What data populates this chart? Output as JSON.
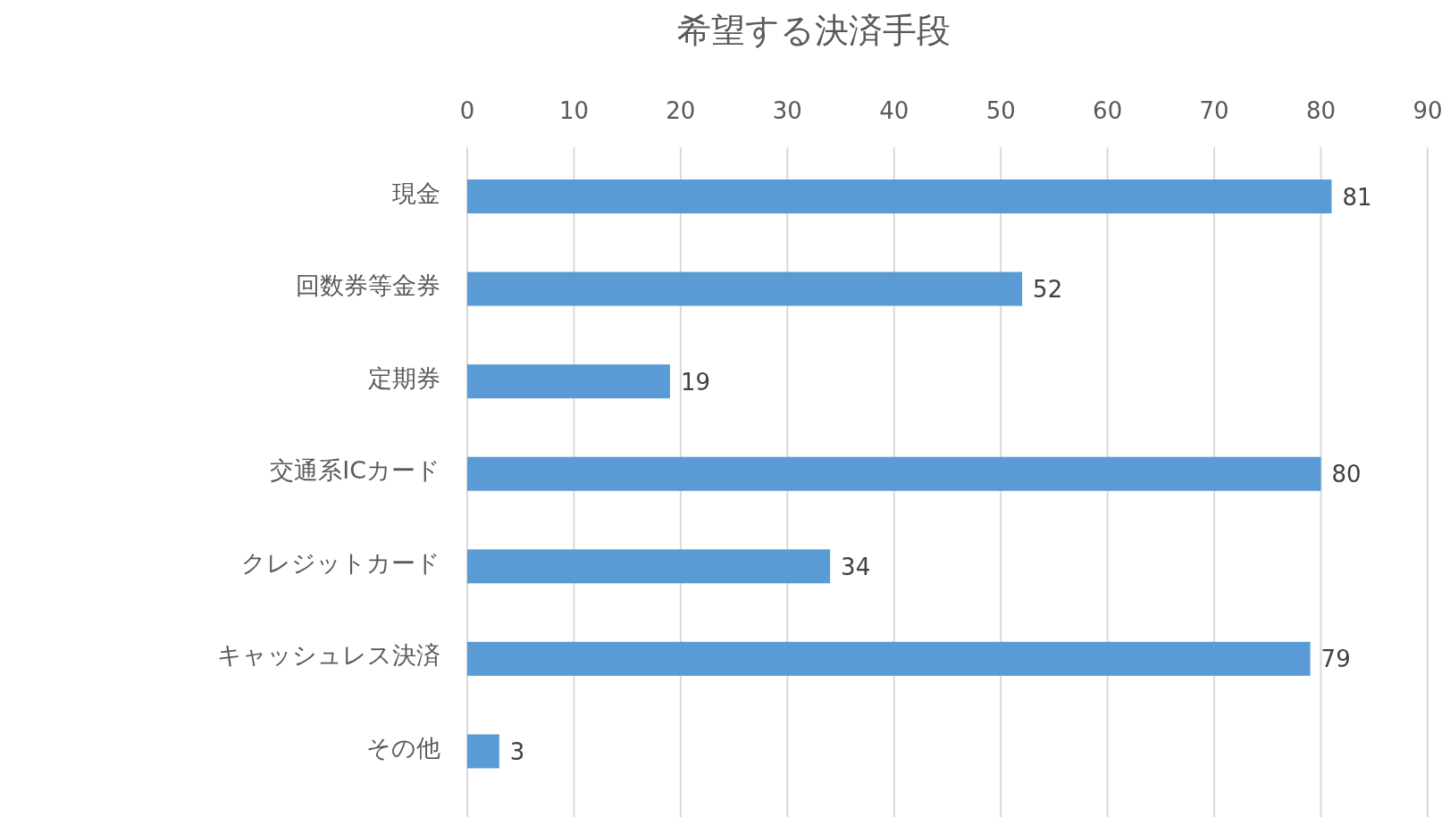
{
  "chart_data": {
    "type": "bar",
    "orientation": "horizontal",
    "title": "希望する決済手段",
    "categories": [
      "現金",
      "回数券等金券",
      "定期券",
      "交通系ICカード",
      "クレジットカード",
      "キャッシュレス決済",
      "その他"
    ],
    "values": [
      81,
      52,
      19,
      80,
      34,
      79,
      3
    ],
    "color": "#5b9bd5",
    "xlim": [
      0,
      90
    ],
    "xticks": [
      0,
      10,
      20,
      30,
      40,
      50,
      60,
      70,
      80,
      90
    ],
    "grid": "x",
    "data_labels": true
  }
}
